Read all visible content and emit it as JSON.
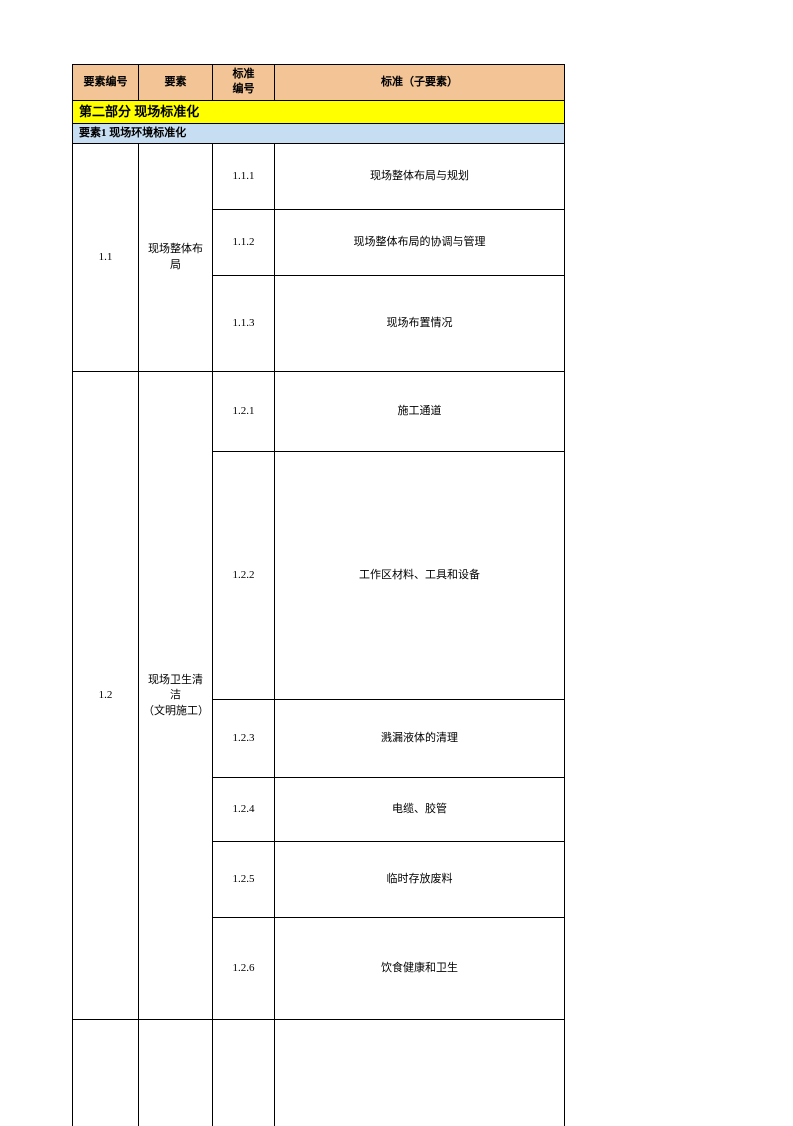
{
  "headers": {
    "col1": "要素编号",
    "col2": "要素",
    "col3": "标准\n编号",
    "col4": "标准（子要素）"
  },
  "section_title": "第二部分  现场标准化",
  "subsection_title": "要素1  现场环境标准化",
  "group1": {
    "id": "1.1",
    "name": "现场整体布局",
    "rows": [
      {
        "code": "1.1.1",
        "desc": "现场整体布局与规划"
      },
      {
        "code": "1.1.2",
        "desc": "现场整体布局的协调与管理"
      },
      {
        "code": "1.1.3",
        "desc": "现场布置情况"
      }
    ]
  },
  "group2": {
    "id": "1.2",
    "name": "现场卫生清洁\n（文明施工）",
    "rows": [
      {
        "code": "1.2.1",
        "desc": "施工通道"
      },
      {
        "code": "1.2.2",
        "desc": "工作区材料、工具和设备"
      },
      {
        "code": "1.2.3",
        "desc": "溅漏液体的清理"
      },
      {
        "code": "1.2.4",
        "desc": "电缆、胶管"
      },
      {
        "code": "1.2.5",
        "desc": "临时存放废料"
      },
      {
        "code": "1.2.6",
        "desc": "饮食健康和卫生"
      }
    ]
  },
  "colors": {
    "header_bg": "#f2c496",
    "section_bg": "#ffff00",
    "subsection_bg": "#c7ddf2",
    "border": "#000000",
    "page_bg": "#ffffff"
  }
}
